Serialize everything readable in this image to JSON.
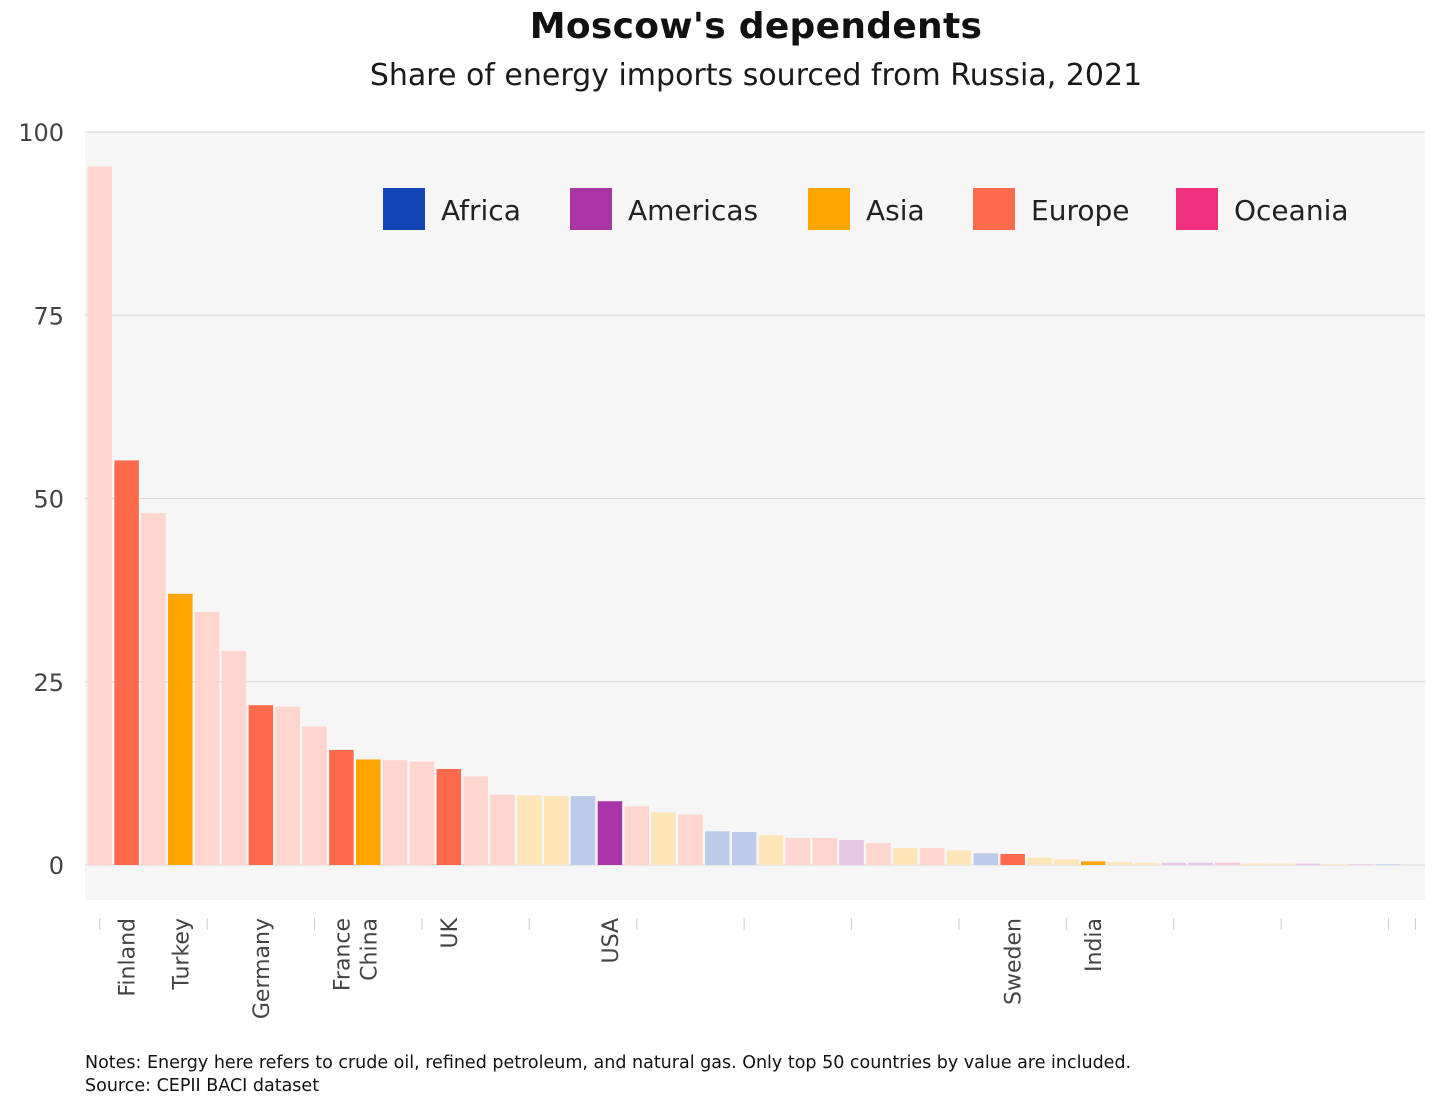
{
  "title": "Moscow's dependents",
  "subtitle": "Share of energy imports sourced from Russia, 2021",
  "notes": "Notes: Energy here refers to crude oil, refined petroleum, and natural gas. Only top 50 countries by value are included.",
  "source": "Source: CEPII BACI dataset",
  "colors": {
    "Africa": "#1246B5",
    "Americas": "#A935A6",
    "Asia": "#FFA500",
    "Europe": "#FF6A4D",
    "Oceania": "#F0307E",
    "plot_background": "#F6F6F6",
    "grid": "#D9D9D9"
  },
  "chart_data": {
    "type": "bar",
    "title": "Moscow's dependents",
    "subtitle": "Share of energy imports sourced from Russia, 2021",
    "xlabel": "",
    "ylabel": "",
    "ylim": [
      0,
      100
    ],
    "yticks": [
      0,
      25,
      50,
      75,
      100
    ],
    "grid": true,
    "legend": {
      "placement": "top-right",
      "entries": [
        "Africa",
        "Americas",
        "Asia",
        "Europe",
        "Oceania"
      ]
    },
    "categories": [
      "",
      "Finland",
      "",
      "Turkey",
      "",
      "",
      "Germany",
      "",
      "",
      "France",
      "China",
      "",
      "",
      "UK",
      "",
      "",
      "",
      "",
      "",
      "USA",
      "",
      "",
      "",
      "",
      "",
      "",
      "",
      "",
      "",
      "",
      "",
      "",
      "",
      "",
      "Sweden",
      "",
      "",
      "India",
      "",
      "",
      "",
      "",
      "",
      "",
      "",
      "",
      "",
      "",
      "",
      ""
    ],
    "series": [
      {
        "region": [
          "Europe",
          "Europe",
          "Europe",
          "Asia",
          "Europe",
          "Europe",
          "Europe",
          "Europe",
          "Europe",
          "Europe",
          "Asia",
          "Europe",
          "Europe",
          "Europe",
          "Europe",
          "Europe",
          "Asia",
          "Asia",
          "Africa",
          "Americas",
          "Europe",
          "Asia",
          "Europe",
          "Africa",
          "Africa",
          "Asia",
          "Europe",
          "Europe",
          "Americas",
          "Europe",
          "Asia",
          "Europe",
          "Asia",
          "Africa",
          "Europe",
          "Asia",
          "Asia",
          "Asia",
          "Asia",
          "Asia",
          "Americas",
          "Americas",
          "Oceania",
          "Asia",
          "Asia",
          "Americas",
          "Asia",
          "Americas",
          "Africa",
          "Asia"
        ],
        "highlighted": [
          false,
          true,
          false,
          true,
          false,
          false,
          true,
          false,
          false,
          true,
          true,
          false,
          false,
          true,
          false,
          false,
          false,
          false,
          false,
          true,
          false,
          false,
          false,
          false,
          false,
          false,
          false,
          false,
          false,
          false,
          false,
          false,
          false,
          false,
          true,
          false,
          false,
          true,
          false,
          false,
          false,
          false,
          false,
          false,
          false,
          false,
          false,
          false,
          false,
          false
        ],
        "values": [
          95.3,
          55.2,
          48.0,
          37.0,
          34.5,
          29.2,
          21.8,
          21.6,
          18.9,
          15.7,
          14.4,
          14.3,
          14.1,
          13.1,
          12.1,
          9.6,
          9.5,
          9.4,
          9.4,
          8.7,
          8.0,
          7.2,
          6.9,
          4.6,
          4.5,
          4.1,
          3.7,
          3.7,
          3.4,
          3.0,
          2.3,
          2.3,
          2.0,
          1.6,
          1.5,
          1.0,
          0.8,
          0.5,
          0.4,
          0.3,
          0.3,
          0.3,
          0.3,
          0.2,
          0.2,
          0.2,
          0.1,
          0.1,
          0.1,
          0.0
        ]
      }
    ]
  }
}
